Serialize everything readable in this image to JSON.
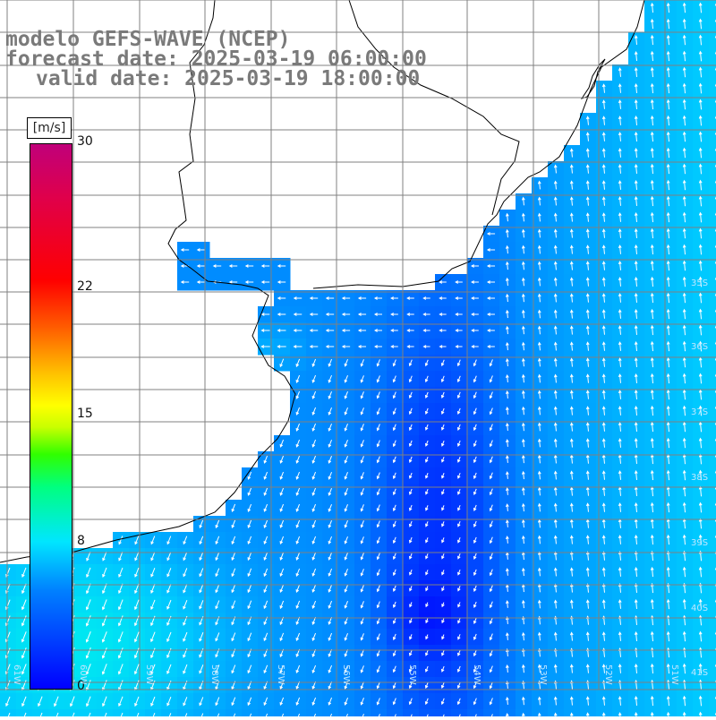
{
  "title": {
    "line1": "modelo GEFS-WAVE (NCEP)",
    "line2": "forecast date: 2025-03-19 06:00:00",
    "line3": "valid date: 2025-03-19 18:00:00"
  },
  "colorbar": {
    "unit": "[m/s]",
    "ticks": [
      "30",
      "22",
      "15",
      "8",
      "0"
    ],
    "tick_values": [
      30,
      22,
      15,
      8,
      0
    ],
    "min": 0,
    "max": 30
  },
  "lat_labels": [
    "35S",
    "36S",
    "37S",
    "38S",
    "39S",
    "40S",
    "41S"
  ],
  "lon_labels": [
    "61W",
    "60W",
    "59W",
    "58W",
    "57W",
    "56W",
    "55W",
    "54W",
    "53W",
    "52W",
    "51W"
  ],
  "colors": {
    "land": "#ffffff",
    "graticule": "#808080",
    "coast": "#000000",
    "arrow": "#ffffff",
    "title": "#7a7a7a"
  }
}
